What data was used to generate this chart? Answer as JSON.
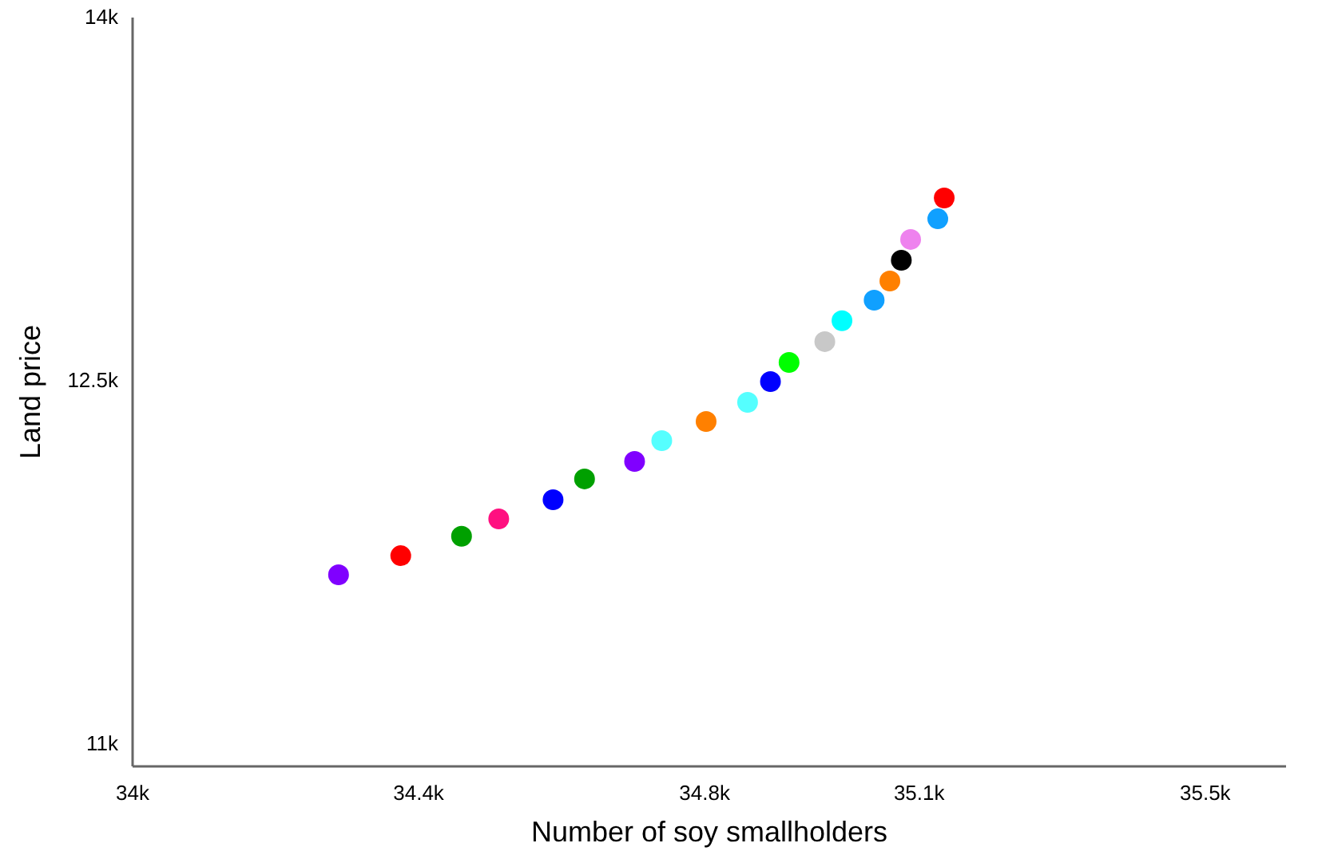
{
  "chart_data": {
    "type": "scatter",
    "xlabel": "Number of soy smallholders",
    "ylabel": "Land price",
    "x": [
      34288,
      34375,
      34460,
      34512,
      34588,
      34632,
      34702,
      34740,
      34802,
      34860,
      34892,
      34918,
      34968,
      34992,
      35037,
      35059,
      35075,
      35088,
      35126,
      35135
    ],
    "values": [
      11699,
      11778,
      11858,
      11930,
      12009,
      12095,
      12167,
      12253,
      12332,
      12411,
      12497,
      12576,
      12662,
      12748,
      12833,
      12912,
      12998,
      13084,
      13169,
      13255
    ],
    "colors": [
      "#8000ff",
      "#ff0000",
      "#00a000",
      "#ff1080",
      "#0000ff",
      "#00a000",
      "#8000ff",
      "#55ffff",
      "#ff8000",
      "#55ffff",
      "#0000ff",
      "#00ff00",
      "#c8c8c8",
      "#00ffff",
      "#10a0ff",
      "#ff8000",
      "#000000",
      "#ee82ee",
      "#10a0ff",
      "#ff0000"
    ],
    "marker": "circle",
    "xlim": [
      34000,
      35613
    ],
    "xticks": [
      {
        "value": 34000,
        "label": "34k"
      },
      {
        "value": 34400,
        "label": "34.4k"
      },
      {
        "value": 34800,
        "label": "34.8k"
      },
      {
        "value": 35100,
        "label": "35.1k"
      },
      {
        "value": 35500,
        "label": "35.5k"
      }
    ],
    "ylim": [
      10908,
      14000
    ],
    "yticks": [
      {
        "value": 11000,
        "label": "11k"
      },
      {
        "value": 12500,
        "label": "12.5k"
      },
      {
        "value": 14000,
        "label": "14k"
      }
    ],
    "grid": false
  }
}
